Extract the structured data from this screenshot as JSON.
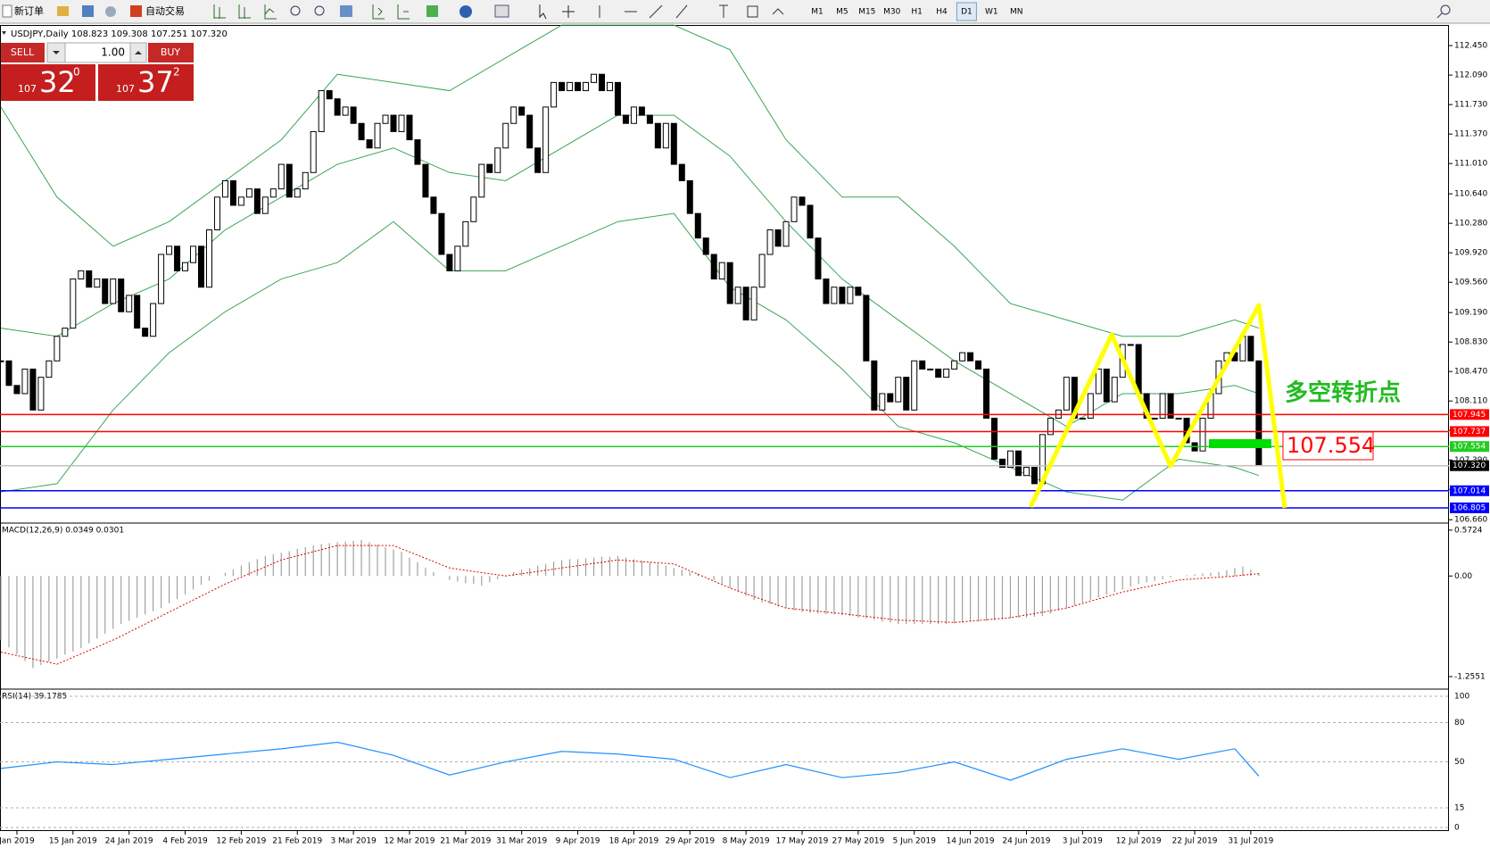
{
  "toolbar": {
    "new_order": "新订单",
    "auto_trading": "自动交易",
    "timeframes": [
      "M1",
      "M5",
      "M15",
      "M30",
      "H1",
      "H4",
      "D1",
      "W1",
      "MN"
    ],
    "active_timeframe": "D1"
  },
  "trade_panel": {
    "sell": "SELL",
    "lot": "1.00",
    "buy": "BUY",
    "bid": {
      "big": "107",
      "main": "32",
      "sup": "0"
    },
    "ask": {
      "big": "107",
      "main": "37",
      "sup": "2"
    }
  },
  "chart_data": {
    "type": "candlestick",
    "title": "USDJPY,Daily  108.823 109.308 107.251 107.320",
    "annotation": "多空转折点",
    "categories": [
      null,
      null,
      "Jan 2019",
      null,
      null,
      null,
      null,
      null,
      null,
      "15 Jan 2019",
      null,
      null,
      null,
      null,
      null,
      null,
      "24 Jan 2019",
      null,
      null,
      null,
      null,
      null,
      null,
      "4 Feb 2019",
      null,
      null,
      null,
      null,
      null,
      null,
      "12 Feb 2019",
      null,
      null,
      null,
      null,
      null,
      null,
      "21 Feb 2019",
      null,
      null,
      null,
      null,
      null,
      null,
      "3 Mar 2019",
      null,
      null,
      null,
      null,
      null,
      null,
      "12 Mar 2019",
      null,
      null,
      null,
      null,
      null,
      null,
      "21 Mar 2019",
      null,
      null,
      null,
      null,
      null,
      null,
      "31 Mar 2019",
      null,
      null,
      null,
      null,
      null,
      null,
      "9 Apr 2019",
      null,
      null,
      null,
      null,
      null,
      null,
      "18 Apr 2019",
      null,
      null,
      null,
      null,
      null,
      null,
      "29 Apr 2019",
      null,
      null,
      null,
      null,
      null,
      null,
      "8 May 2019",
      null,
      null,
      null,
      null,
      null,
      null,
      "17 May 2019",
      null,
      null,
      null,
      null,
      null,
      null,
      "27 May 2019",
      null,
      null,
      null,
      null,
      null,
      null,
      "5 Jun 2019",
      null,
      null,
      null,
      null,
      null,
      null,
      "14 Jun 2019",
      null,
      null,
      null,
      null,
      null,
      null,
      "24 Jun 2019",
      null,
      null,
      null,
      null,
      null,
      null,
      "3 Jul 2019",
      null,
      null,
      null,
      null,
      null,
      null,
      "12 Jul 2019",
      null,
      null,
      null,
      null,
      null,
      null,
      "22 Jul 2019",
      null,
      null,
      null,
      null,
      null,
      null,
      "31 Jul 2019",
      null
    ],
    "values": [
      108.6,
      108.3,
      108.2,
      108.5,
      108.0,
      108.4,
      108.6,
      108.9,
      109.0,
      109.6,
      109.7,
      109.5,
      109.6,
      109.3,
      109.6,
      109.2,
      109.4,
      109.0,
      108.9,
      109.3,
      109.9,
      110.0,
      109.7,
      109.8,
      110.0,
      109.5,
      110.2,
      110.6,
      110.8,
      110.5,
      110.6,
      110.7,
      110.4,
      110.6,
      110.7,
      111.0,
      110.6,
      110.7,
      110.9,
      111.4,
      111.9,
      111.8,
      111.6,
      111.7,
      111.5,
      111.3,
      111.2,
      111.5,
      111.6,
      111.4,
      111.6,
      111.3,
      111.0,
      110.6,
      110.4,
      109.9,
      109.7,
      110.0,
      110.3,
      110.6,
      111.0,
      110.9,
      111.2,
      111.5,
      111.7,
      111.6,
      111.2,
      110.9,
      111.7,
      112.0,
      111.9,
      112.0,
      111.9,
      112.0,
      112.1,
      111.9,
      112.0,
      111.6,
      111.5,
      111.7,
      111.6,
      111.5,
      111.2,
      111.5,
      111.0,
      110.8,
      110.4,
      110.1,
      109.9,
      109.6,
      109.8,
      109.3,
      109.5,
      109.1,
      109.5,
      109.9,
      110.2,
      110.0,
      110.3,
      110.6,
      110.5,
      110.1,
      109.6,
      109.3,
      109.5,
      109.3,
      109.5,
      109.4,
      108.6,
      108.0,
      108.2,
      108.1,
      108.4,
      108.0,
      108.6,
      108.5,
      108.5,
      108.4,
      108.5,
      108.6,
      108.7,
      108.6,
      108.5,
      107.9,
      107.4,
      107.3,
      107.5,
      107.2,
      107.3,
      107.1,
      107.7,
      107.9,
      108.0,
      108.4,
      107.9,
      107.9,
      108.2,
      108.5,
      108.1,
      108.4,
      108.8,
      108.8,
      108.2,
      107.9,
      107.9,
      108.2,
      107.9,
      107.9,
      107.6,
      107.5,
      107.9,
      108.2,
      108.6,
      108.7,
      108.6,
      108.9,
      108.6,
      107.32
    ],
    "ylim": [
      106.63,
      112.68
    ],
    "yticks": [
      {
        "value": 112.45,
        "label": "112.450"
      },
      {
        "value": 112.09,
        "label": "112.090"
      },
      {
        "value": 111.73,
        "label": "111.730"
      },
      {
        "value": 111.37,
        "label": "111.370"
      },
      {
        "value": 111.01,
        "label": "111.010"
      },
      {
        "value": 110.64,
        "label": "110.640"
      },
      {
        "value": 110.28,
        "label": "110.280"
      },
      {
        "value": 109.92,
        "label": "109.920"
      },
      {
        "value": 109.56,
        "label": "109.560"
      },
      {
        "value": 109.19,
        "label": "109.190"
      },
      {
        "value": 108.83,
        "label": "108.830"
      },
      {
        "value": 108.47,
        "label": "108.470"
      },
      {
        "value": 108.11,
        "label": "108.110"
      },
      {
        "value": 107.75,
        "label": "107.750"
      },
      {
        "value": 107.39,
        "label": "107.390"
      },
      {
        "value": 107.03,
        "label": "107.030"
      },
      {
        "value": 106.66,
        "label": "106.660"
      }
    ],
    "levels": [
      {
        "value": 107.945,
        "color": "#ff0000"
      },
      {
        "value": 107.737,
        "color": "#ff0000"
      },
      {
        "value": 107.554,
        "color": "#22cc22"
      },
      {
        "value": 107.32,
        "label": "107.320",
        "color": "#c0c0c0",
        "label_color": "#000000"
      },
      {
        "value": 107.014,
        "color": "#0000ff"
      },
      {
        "value": 106.805,
        "color": "#0000ff"
      }
    ],
    "sample_x": [
      0,
      7,
      14,
      21,
      28,
      35,
      42,
      49,
      56,
      63,
      70,
      77,
      84,
      91,
      98,
      105,
      112,
      119,
      126,
      133,
      140,
      147,
      154,
      157
    ],
    "bands": {
      "color": "#3aa655",
      "upper": [
        111.7,
        110.6,
        110.0,
        110.3,
        110.8,
        111.3,
        112.1,
        112.0,
        111.9,
        112.3,
        112.7,
        112.7,
        112.7,
        112.4,
        111.3,
        110.6,
        110.6,
        110.0,
        109.3,
        109.1,
        108.9,
        108.9,
        109.1,
        109.0
      ],
      "middle": [
        109.0,
        108.9,
        109.3,
        109.6,
        110.2,
        110.6,
        111.0,
        111.2,
        110.9,
        110.8,
        111.2,
        111.6,
        111.6,
        111.1,
        110.3,
        109.6,
        109.1,
        108.6,
        108.2,
        107.8,
        108.2,
        108.2,
        108.3,
        108.2
      ],
      "lower": [
        107.0,
        107.1,
        108.0,
        108.7,
        109.2,
        109.6,
        109.8,
        110.3,
        109.7,
        109.7,
        110.0,
        110.3,
        110.4,
        109.5,
        109.1,
        108.5,
        107.8,
        107.6,
        107.3,
        107.0,
        106.9,
        107.4,
        107.3,
        107.2
      ]
    },
    "macd": {
      "label": "MACD(12,26,9) 0.0349 0.0301",
      "ylim": [
        -1.4,
        0.66
      ],
      "yticks": [
        0.5724,
        {
          "value": 0,
          "label": "0.00"
        },
        -1.2551
      ],
      "histogram_color": "#a0a0a0",
      "signal_color": "#e00000",
      "histogram": [
        -0.8,
        -0.89,
        -0.98,
        -1.06,
        -1.15,
        -1.11,
        -1.07,
        -1.03,
        -0.98,
        -0.94,
        -0.9,
        -0.84,
        -0.78,
        -0.72,
        -0.66,
        -0.6,
        -0.56,
        -0.52,
        -0.48,
        -0.44,
        -0.4,
        -0.34,
        -0.29,
        -0.23,
        -0.17,
        -0.11,
        -0.06,
        0,
        0.04,
        0.08,
        0.13,
        0.17,
        0.21,
        0.25,
        0.27,
        0.29,
        0.31,
        0.34,
        0.36,
        0.38,
        0.4,
        0.41,
        0.42,
        0.43,
        0.44,
        0.45,
        0.42,
        0.39,
        0.36,
        0.33,
        0.3,
        0.23,
        0.17,
        0.1,
        0.05,
        0,
        -0.05,
        -0.07,
        -0.09,
        -0.1,
        -0.12,
        -0.08,
        -0.04,
        0.01,
        0.05,
        0.08,
        0.1,
        0.13,
        0.15,
        0.18,
        0.2,
        0.21,
        0.21,
        0.22,
        0.23,
        0.24,
        0.24,
        0.25,
        0.23,
        0.21,
        0.19,
        0.17,
        0.15,
        0.13,
        0.1,
        0.08,
        0.05,
        0.03,
        0,
        -0.05,
        -0.1,
        -0.15,
        -0.2,
        -0.25,
        -0.3,
        -0.33,
        -0.35,
        -0.38,
        -0.4,
        -0.43,
        -0.45,
        -0.46,
        -0.47,
        -0.48,
        -0.48,
        -0.49,
        -0.5,
        -0.52,
        -0.53,
        -0.55,
        -0.57,
        -0.58,
        -0.6,
        -0.6,
        -0.6,
        -0.6,
        -0.6,
        -0.6,
        -0.6,
        -0.59,
        -0.58,
        -0.57,
        -0.57,
        -0.56,
        -0.55,
        -0.54,
        -0.53,
        -0.52,
        -0.52,
        -0.51,
        -0.5,
        -0.47,
        -0.43,
        -0.4,
        -0.37,
        -0.33,
        -0.3,
        -0.27,
        -0.23,
        -0.2,
        -0.17,
        -0.13,
        -0.1,
        -0.08,
        -0.06,
        -0.04,
        -0.02,
        0,
        0.01,
        0.02,
        0.03,
        0.04,
        0.05,
        0.07,
        0.1,
        0.12,
        0.08,
        0.0349
      ],
      "signal": [
        -0.95,
        -1.1,
        -0.8,
        -0.45,
        -0.1,
        0.2,
        0.38,
        0.38,
        0.1,
        0.0,
        0.1,
        0.2,
        0.15,
        -0.15,
        -0.4,
        -0.47,
        -0.55,
        -0.58,
        -0.52,
        -0.4,
        -0.2,
        -0.05,
        0.0,
        0.0301
      ]
    },
    "rsi": {
      "label": "RSI(14) 39.1785",
      "ylim": [
        -2.7,
        104.8
      ],
      "yticks": [
        100,
        80,
        50,
        15,
        0
      ],
      "color": "#1e90ff",
      "values": [
        45,
        50,
        48,
        52,
        56,
        60,
        65,
        55,
        40,
        50,
        58,
        56,
        52,
        38,
        48,
        38,
        42,
        50,
        36,
        52,
        60,
        52,
        60,
        39.1785
      ]
    }
  }
}
